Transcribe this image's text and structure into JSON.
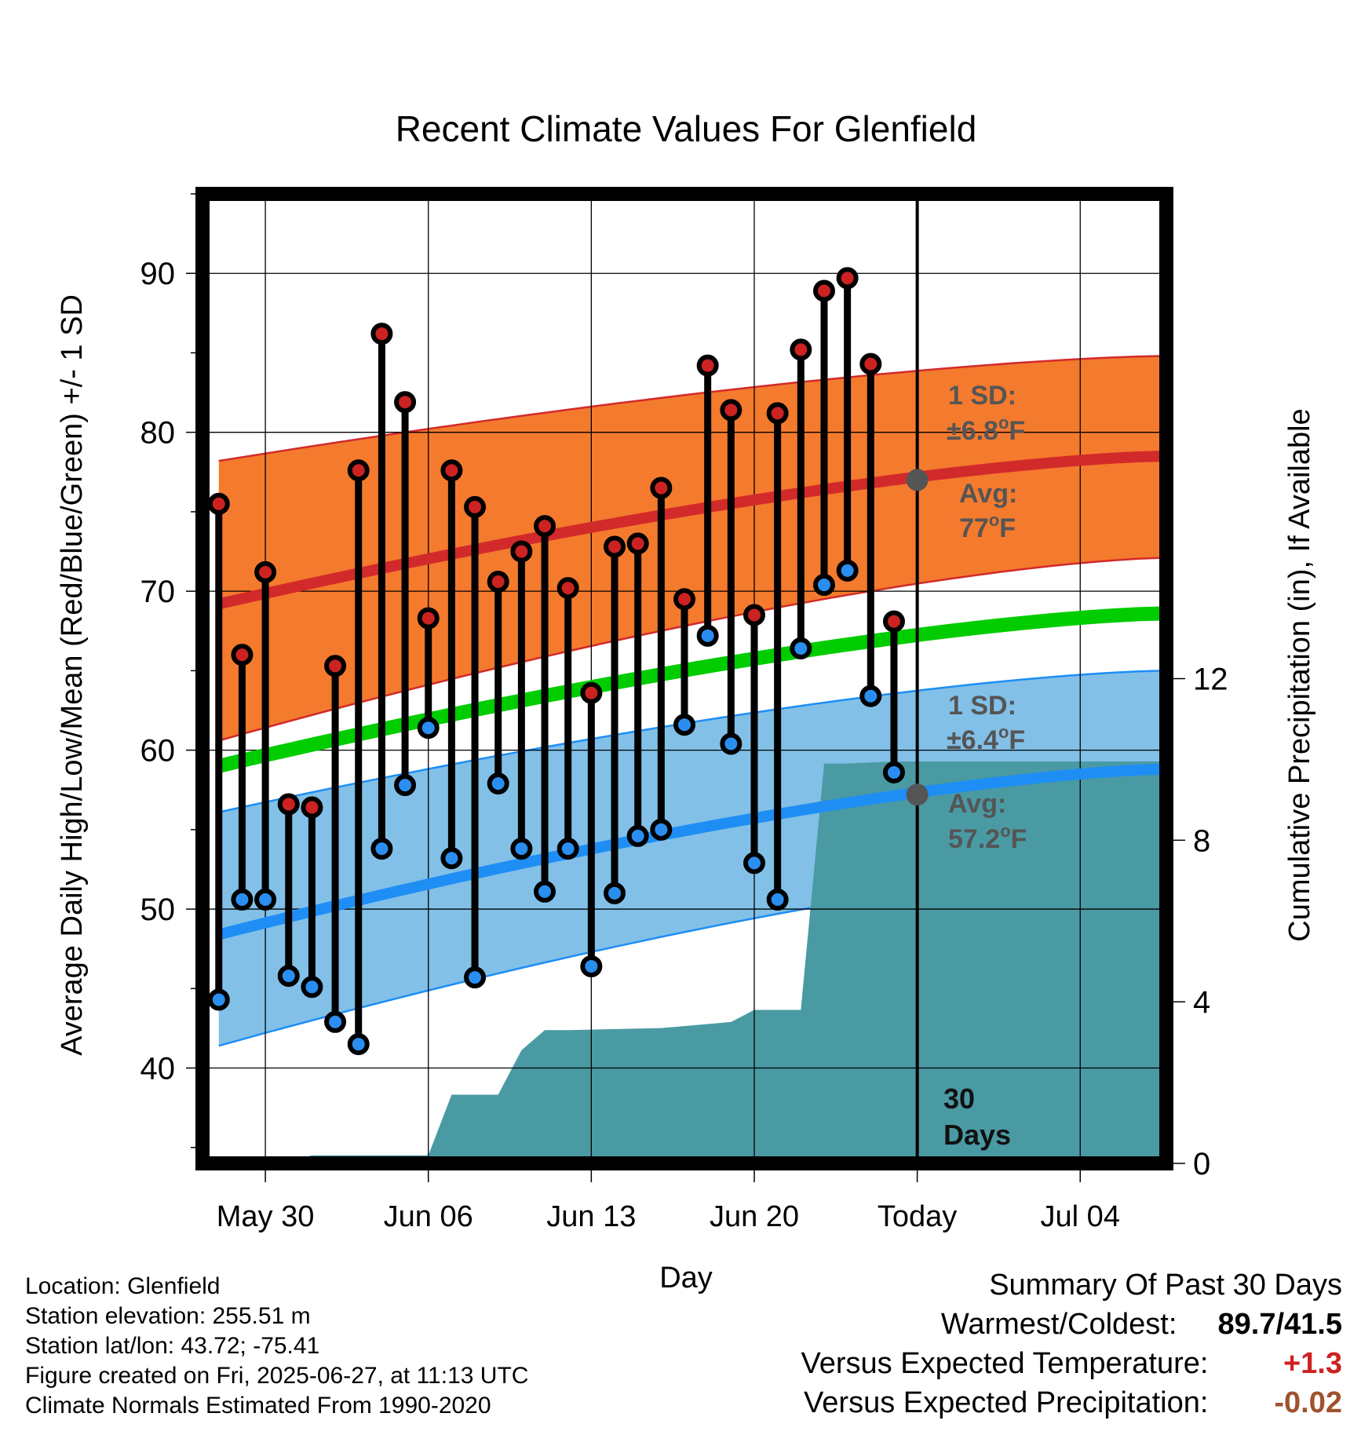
{
  "chart_data": {
    "type": "line",
    "title": "Recent Climate Values For Glenfield",
    "xlabel": "Day",
    "ylabel": "Average Daily High/Low/Mean (Red/Blue/Green) +/- 1 SD",
    "y2label": "Cumulative Precipitation (in), If Available",
    "ylim": [
      34,
      95
    ],
    "y2lim": [
      0,
      24
    ],
    "y_ticks": [
      "40",
      "50",
      "60",
      "70",
      "80",
      "90"
    ],
    "y2_ticks": [
      "0",
      "4",
      "8",
      "12"
    ],
    "x_tick_labels": [
      {
        "day": 3,
        "label": "May 30"
      },
      {
        "day": 10,
        "label": "Jun 06"
      },
      {
        "day": 17,
        "label": "Jun 13"
      },
      {
        "day": 24,
        "label": "Jun 20"
      },
      {
        "day": 31,
        "label": "Today"
      },
      {
        "day": 38,
        "label": "Jul 04"
      }
    ],
    "xlim": [
      0.3,
      41.7
    ],
    "today_day": 31,
    "daily": {
      "days": [
        1,
        2,
        3,
        4,
        5,
        6,
        7,
        8,
        9,
        10,
        11,
        12,
        13,
        14,
        15,
        16,
        17,
        18,
        19,
        20,
        21,
        22,
        23,
        24,
        25,
        26,
        27,
        28,
        29,
        30
      ],
      "high": [
        75.5,
        66,
        71.2,
        56.6,
        56.4,
        65.3,
        77.6,
        86.2,
        81.9,
        68.3,
        77.6,
        75.3,
        70.6,
        72.5,
        74.1,
        70.2,
        63.6,
        72.8,
        73,
        76.5,
        69.5,
        84.2,
        81.4,
        68.5,
        81.2,
        85.2,
        88.9,
        89.7,
        84.3,
        68.1
      ],
      "low": [
        44.3,
        50.6,
        50.6,
        45.8,
        45.1,
        42.9,
        41.5,
        53.8,
        57.8,
        61.4,
        53.2,
        45.7,
        57.9,
        53.8,
        51.1,
        53.8,
        46.4,
        51,
        54.6,
        55,
        61.6,
        67.2,
        60.4,
        52.9,
        50.6,
        66.4,
        70.4,
        71.3,
        63.4,
        58.6
      ]
    },
    "normals": {
      "days": [
        1,
        41.5
      ],
      "high_avg": [
        69.2,
        78.5
      ],
      "high_upper": [
        78.2,
        84.8
      ],
      "high_lower": [
        60.6,
        72.1
      ],
      "mean_avg": [
        59.0,
        68.6
      ],
      "low_avg": [
        48.4,
        58.8
      ],
      "low_upper": [
        56.1,
        65.0
      ],
      "low_lower": [
        41.4,
        52.8
      ]
    },
    "precip": {
      "days": [
        1,
        4,
        5,
        10,
        11,
        13,
        14,
        15,
        16,
        20,
        22,
        23,
        24,
        25,
        26,
        27,
        28,
        30,
        31,
        41.5
      ],
      "values": [
        0,
        0.05,
        0.2,
        0.2,
        1.7,
        1.7,
        2.8,
        3.3,
        3.3,
        3.35,
        3.45,
        3.5,
        3.8,
        3.8,
        3.8,
        9.9,
        9.9,
        9.95,
        9.95,
        9.95
      ]
    },
    "colors": {
      "high_band": "#f47a2e",
      "high_line": "#d22a2a",
      "low_band": "#82c0e8",
      "low_line": "#1e8ef5",
      "mean_line": "#00cc00",
      "precip": "#4a9aa4",
      "high_dot": "#cc2222",
      "low_dot": "#2a8ef0",
      "note": "#555555"
    },
    "annotations": {
      "high_sd_1": "1 SD:",
      "high_sd_2": "±6.8",
      "high_avg_1": "Avg:",
      "high_avg_2": "77",
      "low_sd_1": "1 SD:",
      "low_sd_2": "±6.4",
      "low_avg_1": "Avg:",
      "low_avg_2": "57.2",
      "deg_unit": "o",
      "f_unit": "F",
      "days_1": "30",
      "days_2": "Days",
      "high_today_avg": 77.0,
      "low_today_avg": 57.2
    }
  },
  "info": {
    "location": "Location: Glenfield",
    "elevation": "Station elevation: 255.51 m",
    "latlon": "Station lat/lon: 43.72; -75.41",
    "created": "Figure created on Fri, 2025-06-27, at 11:13 UTC",
    "normals": "Climate Normals Estimated From 1990-2020"
  },
  "summary": {
    "title": "Summary Of Past 30 Days",
    "warm_cold_label": "Warmest/Coldest:",
    "warm_cold_value": "89.7/41.5",
    "temp_label": "Versus Expected Temperature:",
    "temp_value": "+1.3",
    "temp_color": "#cc2222",
    "precip_label": "Versus Expected Precipitation:",
    "precip_value": "-0.02",
    "precip_color": "#a0522d"
  }
}
